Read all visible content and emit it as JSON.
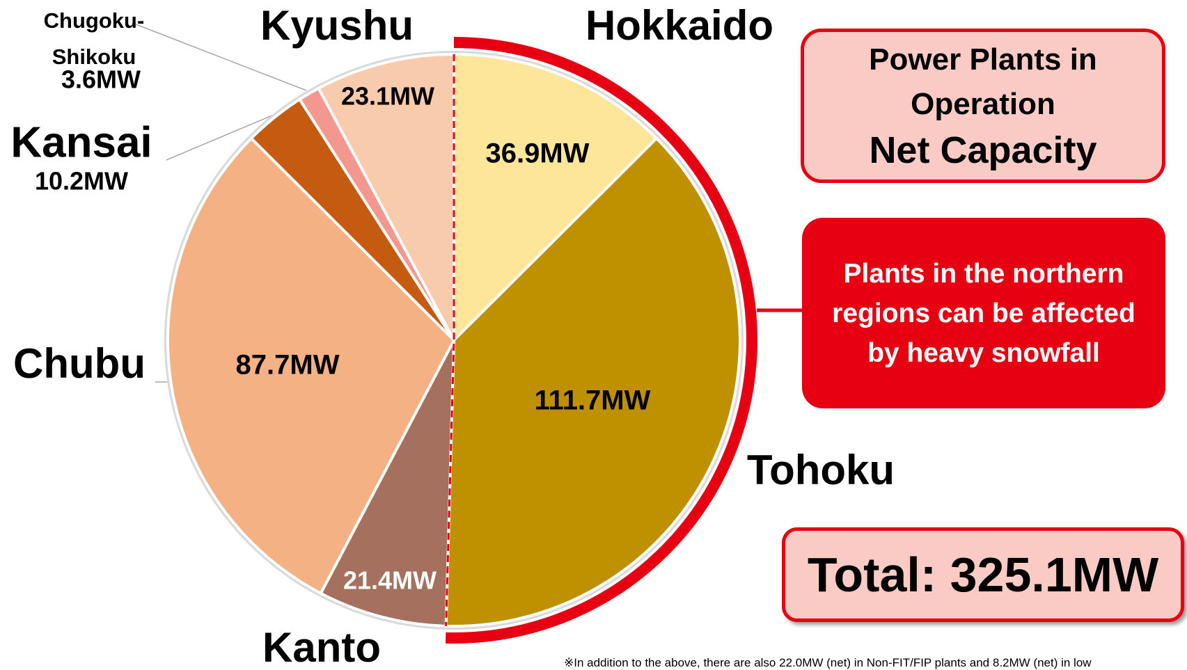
{
  "chart_data": {
    "type": "pie",
    "categories": [
      "Hokkaido",
      "Tohoku",
      "Kanto",
      "Chubu",
      "Kansai",
      "Chugoku-Shikoku",
      "Kyushu"
    ],
    "values": [
      36.9,
      111.7,
      21.4,
      87.7,
      10.2,
      3.6,
      23.1
    ],
    "value_labels": [
      "36.9MW",
      "111.7MW",
      "21.4MW",
      "87.7MW",
      "10.2MW",
      "3.6MW",
      "23.1MW"
    ],
    "colors": [
      "#fde59a",
      "#bf9000",
      "#a5705e",
      "#f4b183",
      "#c55a11",
      "#f4978e",
      "#f8cbad"
    ],
    "title": "Power Plants in Operation",
    "subtitle": "Net Capacity",
    "annotation": "Plants in the northern regions can be affected by heavy snowfall",
    "total": "Total: 325.1MW",
    "footnote": "※In addition to the above, there are also 22.0MW (net) in Non-FIT/FIP plants and 8.2MW (net) in low"
  }
}
